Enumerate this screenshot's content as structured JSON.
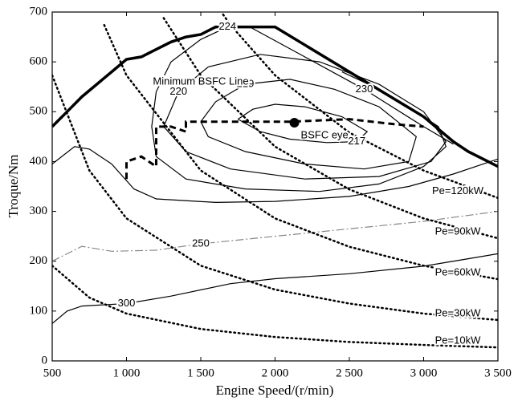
{
  "chart_data": {
    "type": "contour",
    "xlabel": "Engine Speed/(r/min)",
    "ylabel": "Troque/Nm",
    "xlim": [
      500,
      3500
    ],
    "ylim": [
      0,
      700
    ],
    "xticks": [
      500,
      {
        "value": 1000,
        "label": "1 000"
      },
      {
        "value": 1500,
        "label": "1 500"
      },
      {
        "value": 2000,
        "label": "2 000"
      },
      {
        "value": 2500,
        "label": "2 500"
      },
      {
        "value": 3000,
        "label": "3 000"
      },
      {
        "value": 3500,
        "label": "3 500"
      }
    ],
    "yticks": [
      0,
      100,
      200,
      300,
      400,
      500,
      600,
      700
    ],
    "series": [
      {
        "style": "thick",
        "color": "#000000",
        "x": [
          500,
          600,
          700,
          800,
          900,
          1000,
          1100,
          1200,
          1300,
          1400,
          1500,
          1600,
          1700,
          2000,
          2500,
          3000,
          3200,
          3300,
          3500
        ],
        "y": [
          470,
          500,
          530,
          555,
          580,
          605,
          610,
          625,
          640,
          650,
          655,
          670,
          670,
          670,
          580,
          490,
          440,
          420,
          390
        ]
      },
      {
        "name": "217",
        "style": "solid",
        "color": "#000000",
        "x": [
          1750,
          1850,
          2000,
          2200,
          2450,
          2620,
          2550,
          2350,
          2100,
          1900,
          1750
        ],
        "y": [
          485,
          505,
          515,
          510,
          490,
          460,
          440,
          438,
          445,
          460,
          485
        ]
      },
      {
        "name": "219",
        "style": "solid",
        "color": "#000000",
        "x": [
          1500,
          1600,
          1800,
          2100,
          2400,
          2700,
          2950,
          2900,
          2600,
          2200,
          1800,
          1550,
          1500
        ],
        "y": [
          480,
          520,
          555,
          565,
          545,
          510,
          450,
          400,
          385,
          395,
          420,
          450,
          480
        ]
      },
      {
        "name": "220",
        "style": "solid",
        "color": "#000000",
        "x": [
          1250,
          1350,
          1550,
          1900,
          2300,
          2700,
          3000,
          3150,
          3050,
          2700,
          2200,
          1700,
          1400,
          1250
        ],
        "y": [
          470,
          540,
          590,
          615,
          600,
          555,
          500,
          440,
          400,
          370,
          365,
          385,
          420,
          470
        ]
      },
      {
        "name": "224",
        "style": "solid",
        "color": "#000000",
        "x": [
          1680,
          1500,
          1300,
          1200,
          1170,
          1200,
          1400,
          1800,
          2300,
          2700,
          3000,
          3150,
          3100,
          2900,
          2700,
          2450
        ],
        "y": [
          670,
          645,
          600,
          540,
          470,
          410,
          365,
          345,
          340,
          355,
          390,
          430,
          470,
          510,
          545,
          580
        ]
      },
      {
        "name": "230",
        "style": "solid",
        "color": "#000000",
        "x": [
          1830,
          2200,
          2600,
          3000,
          3200,
          null,
          500,
          650,
          750,
          900,
          1050,
          1200,
          1600,
          2000,
          2500,
          2900,
          3200,
          3500
        ],
        "y": [
          670,
          610,
          545,
          470,
          435,
          null,
          395,
          430,
          425,
          395,
          345,
          325,
          318,
          320,
          330,
          350,
          375,
          405
        ]
      },
      {
        "name": "250",
        "style": "dashdot",
        "color": "#888888",
        "x": [
          500,
          700,
          900,
          1200,
          1500,
          2000,
          2500,
          3000,
          3500
        ],
        "y": [
          200,
          230,
          220,
          222,
          235,
          250,
          265,
          280,
          300
        ]
      },
      {
        "name": "300",
        "style": "solid",
        "color": "#000000",
        "x": [
          500,
          600,
          700,
          1000,
          1300,
          1700,
          2000,
          2500,
          3000,
          3300,
          3500
        ],
        "y": [
          75,
          100,
          110,
          115,
          130,
          155,
          165,
          175,
          190,
          205,
          215
        ]
      },
      {
        "name": "Pe=120kW",
        "style": "dotted",
        "color": "#000000",
        "x": [
          1650,
          1700,
          2000,
          2500,
          3000,
          3500
        ],
        "y": [
          695,
          674,
          573,
          458,
          382,
          327
        ]
      },
      {
        "name": "Pe=90kW",
        "style": "dotted",
        "color": "#000000",
        "x": [
          1250,
          1500,
          2000,
          2500,
          3000,
          3500
        ],
        "y": [
          688,
          573,
          430,
          344,
          286,
          246
        ]
      },
      {
        "name": "Pe=60kW",
        "style": "dotted",
        "color": "#000000",
        "x": [
          850,
          1000,
          1500,
          2000,
          2500,
          3000,
          3500
        ],
        "y": [
          674,
          573,
          382,
          286,
          229,
          191,
          164
        ]
      },
      {
        "name": "Pe=30kW",
        "style": "dotted",
        "color": "#000000",
        "x": [
          500,
          750,
          1000,
          1500,
          2000,
          2500,
          3000,
          3500
        ],
        "y": [
          573,
          382,
          286,
          191,
          143,
          115,
          95,
          82
        ]
      },
      {
        "name": "Pe=10kW",
        "style": "dotted",
        "color": "#000000",
        "x": [
          500,
          750,
          1000,
          1500,
          2000,
          2500,
          3000,
          3500
        ],
        "y": [
          191,
          127,
          95,
          64,
          48,
          38,
          32,
          27
        ]
      },
      {
        "name": "Minimum BSFC Line",
        "style": "dashed",
        "color": "#000000",
        "x": [
          1000,
          1000,
          1100,
          1200,
          1200,
          1300,
          1400,
          1400,
          1500,
          1800,
          2000,
          2100,
          2500,
          2800,
          3000
        ],
        "y": [
          365,
          400,
          410,
          390,
          470,
          470,
          460,
          480,
          480,
          480,
          480,
          480,
          485,
          475,
          470
        ]
      },
      {
        "name": "BSFC eye",
        "style": "point",
        "color": "#000000",
        "x": [
          2130
        ],
        "y": [
          478
        ]
      }
    ]
  }
}
